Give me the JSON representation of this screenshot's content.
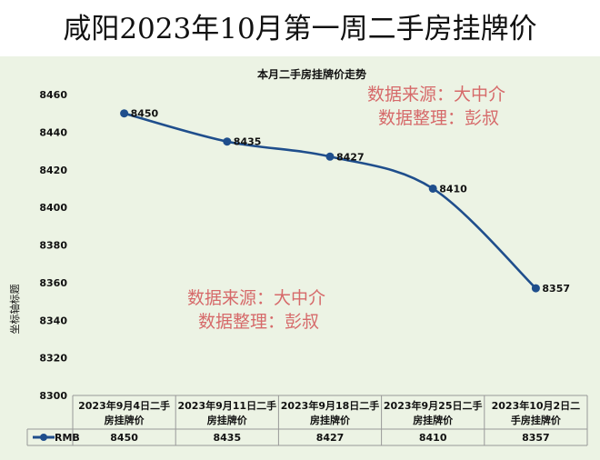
{
  "page_title": "咸阳2023年10月第一周二手房挂牌价",
  "chart_data": {
    "type": "line",
    "title": "本月二手房挂牌价走势",
    "ylabel": "坐标轴标题",
    "ylim": [
      8300,
      8460
    ],
    "yticks": [
      8300,
      8320,
      8340,
      8360,
      8380,
      8400,
      8420,
      8440,
      8460
    ],
    "categories": [
      [
        "2023年9月4日二手",
        "房挂牌价"
      ],
      [
        "2023年9月11日二手",
        "房挂牌价"
      ],
      [
        "2023年9月18日二手",
        "房挂牌价"
      ],
      [
        "2023年9月25日二手",
        "房挂牌价"
      ],
      [
        "2023年10月2日二",
        "手房挂牌价"
      ]
    ],
    "series": [
      {
        "name": "RMB",
        "values": [
          8450,
          8435,
          8427,
          8410,
          8357
        ],
        "color": "#1f4e8c"
      }
    ],
    "legend": "bottom-left (data table)",
    "grid": false,
    "data_table": true,
    "smooth": true
  },
  "watermarks": [
    {
      "lines": [
        "数据来源：大中介",
        "数据整理：彭叔"
      ]
    },
    {
      "lines": [
        "数据来源：大中介",
        "数据整理：彭叔"
      ]
    }
  ]
}
